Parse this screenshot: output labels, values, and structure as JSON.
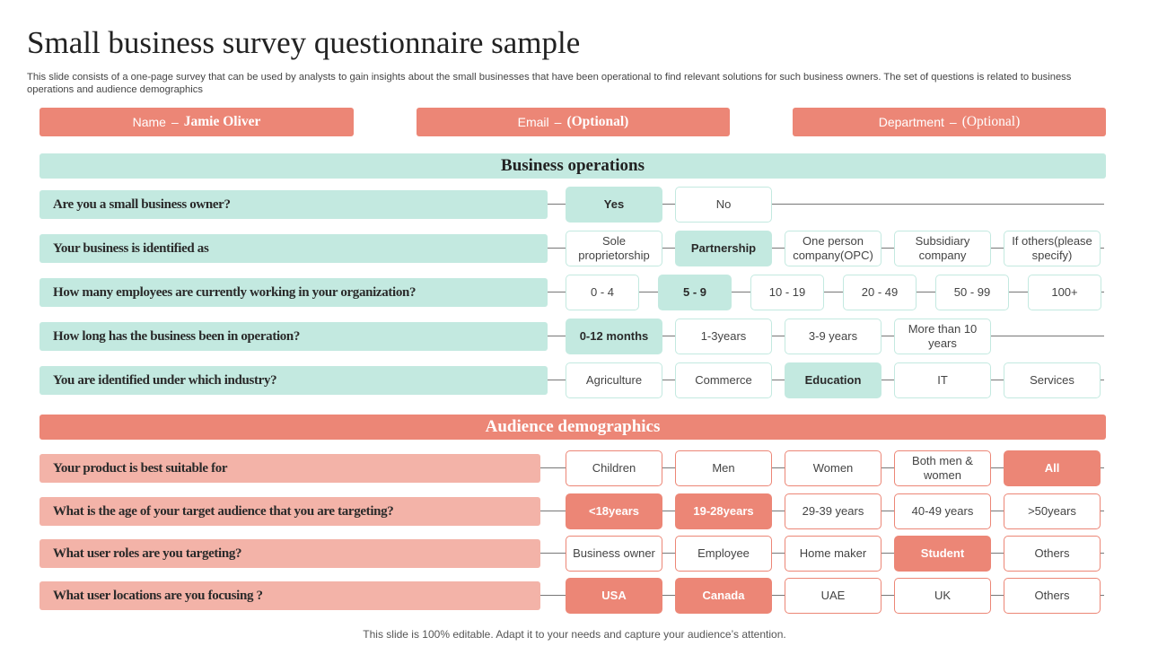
{
  "title": "Small business survey questionnaire sample",
  "subtitle": "This slide consists of a one-page survey that can be used by analysts to gain insights about the small businesses that have been operational to find relevant solutions for such business owners. The set of questions is related to business operations and audience demographics",
  "fields": {
    "name": {
      "label": "Name",
      "sep": "–",
      "value": "Jamie Oliver"
    },
    "email": {
      "label": "Email",
      "sep": "–",
      "value": "(Optional)"
    },
    "department": {
      "label": "Department",
      "sep": "–",
      "value": "(Optional)"
    }
  },
  "sections": {
    "operations": "Business operations",
    "audience": "Audience demographics"
  },
  "questions": {
    "q1": {
      "text": "Are you a small business owner?",
      "options": [
        "Yes",
        "No"
      ],
      "selected": [
        0
      ]
    },
    "q2": {
      "text": "Your business is identified as",
      "options": [
        "Sole proprietorship",
        "Partnership",
        "One person company(OPC)",
        "Subsidiary company",
        "If others(please specify)"
      ],
      "selected": [
        1
      ]
    },
    "q3": {
      "text": "How many employees are currently working in your organization?",
      "options": [
        "0 - 4",
        "5 - 9",
        "10 - 19",
        "20 - 49",
        "50 - 99",
        "100+"
      ],
      "selected": [
        1
      ]
    },
    "q4": {
      "text": "How long has the business been in operation?",
      "options": [
        "0-12 months",
        "1-3years",
        "3-9 years",
        "More than 10 years"
      ],
      "selected": [
        0
      ]
    },
    "q5": {
      "text": "You are identified under which industry?",
      "options": [
        "Agriculture",
        "Commerce",
        "Education",
        "IT",
        "Services"
      ],
      "selected": [
        2
      ]
    },
    "q6": {
      "text": "Your product is best suitable for",
      "options": [
        "Children",
        "Men",
        "Women",
        "Both men & women",
        "All"
      ],
      "selected": [
        4
      ]
    },
    "q7": {
      "text": "What is the age of your target audience that you are targeting?",
      "options": [
        "<18years",
        "19-28years",
        "29-39 years",
        "40-49 years",
        ">50years"
      ],
      "selected": [
        0,
        1
      ]
    },
    "q8": {
      "text": "What user roles are you targeting?",
      "options": [
        "Business owner",
        "Employee",
        "Home maker",
        "Student",
        "Others"
      ],
      "selected": [
        3
      ]
    },
    "q9": {
      "text": "What user locations are you focusing ?",
      "options": [
        "USA",
        "Canada",
        "UAE",
        "UK",
        "Others"
      ],
      "selected": [
        0,
        1
      ]
    }
  },
  "footer": "This slide is 100% editable. Adapt it to your needs and capture your audience’s attention.",
  "colors": {
    "teal": "#c3e9e0",
    "salmon": "#ec8676",
    "salmon_light": "#f3b3a8"
  }
}
